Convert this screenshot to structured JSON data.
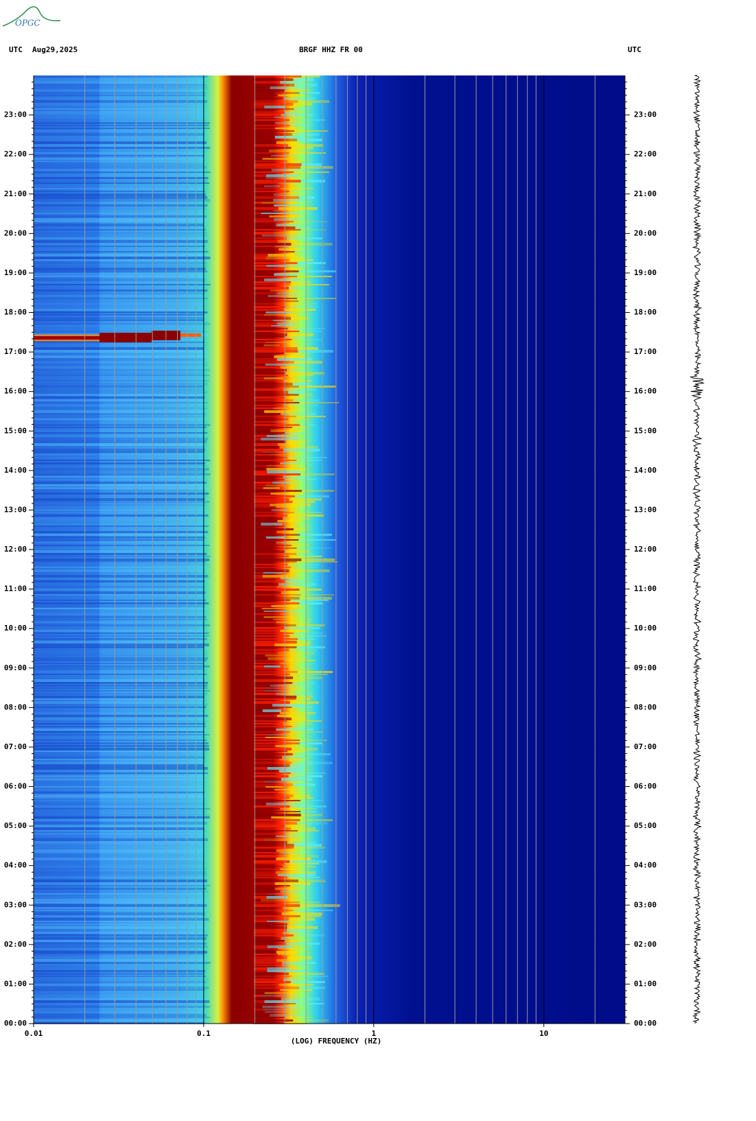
{
  "logo": "OPGC",
  "chart_data": {
    "type": "spectrogram",
    "header_left": "UTC",
    "date": "Aug29,2025",
    "title": "BRGF HHZ FR 00",
    "header_right": "UTC",
    "xlabel": "(LOG) FREQUENCY (HZ)",
    "xscale": "log",
    "xlim": [
      0.01,
      30
    ],
    "xticks": [
      0.01,
      0.1,
      1,
      10
    ],
    "xgrid": [
      0.02,
      0.03,
      0.04,
      0.05,
      0.06,
      0.07,
      0.08,
      0.09,
      0.2,
      0.3,
      0.4,
      0.5,
      0.6,
      0.7,
      0.8,
      0.9,
      2,
      3,
      4,
      5,
      6,
      7,
      8,
      9,
      20
    ],
    "ylim": [
      0,
      24
    ],
    "yticks": [
      {
        "value": 0,
        "label": "00:00"
      },
      {
        "value": 1,
        "label": "01:00"
      },
      {
        "value": 2,
        "label": "02:00"
      },
      {
        "value": 3,
        "label": "03:00"
      },
      {
        "value": 4,
        "label": "04:00"
      },
      {
        "value": 5,
        "label": "05:00"
      },
      {
        "value": 6,
        "label": "06:00"
      },
      {
        "value": 7,
        "label": "07:00"
      },
      {
        "value": 8,
        "label": "08:00"
      },
      {
        "value": 9,
        "label": "09:00"
      },
      {
        "value": 10,
        "label": "10:00"
      },
      {
        "value": 11,
        "label": "11:00"
      },
      {
        "value": 12,
        "label": "12:00"
      },
      {
        "value": 13,
        "label": "13:00"
      },
      {
        "value": 14,
        "label": "14:00"
      },
      {
        "value": 15,
        "label": "15:00"
      },
      {
        "value": 16,
        "label": "16:00"
      },
      {
        "value": 17,
        "label": "17:00"
      },
      {
        "value": 18,
        "label": "18:00"
      },
      {
        "value": 19,
        "label": "19:00"
      },
      {
        "value": 20,
        "label": "20:00"
      },
      {
        "value": 21,
        "label": "21:00"
      },
      {
        "value": 22,
        "label": "22:00"
      },
      {
        "value": 23,
        "label": "23:00"
      }
    ]
  }
}
